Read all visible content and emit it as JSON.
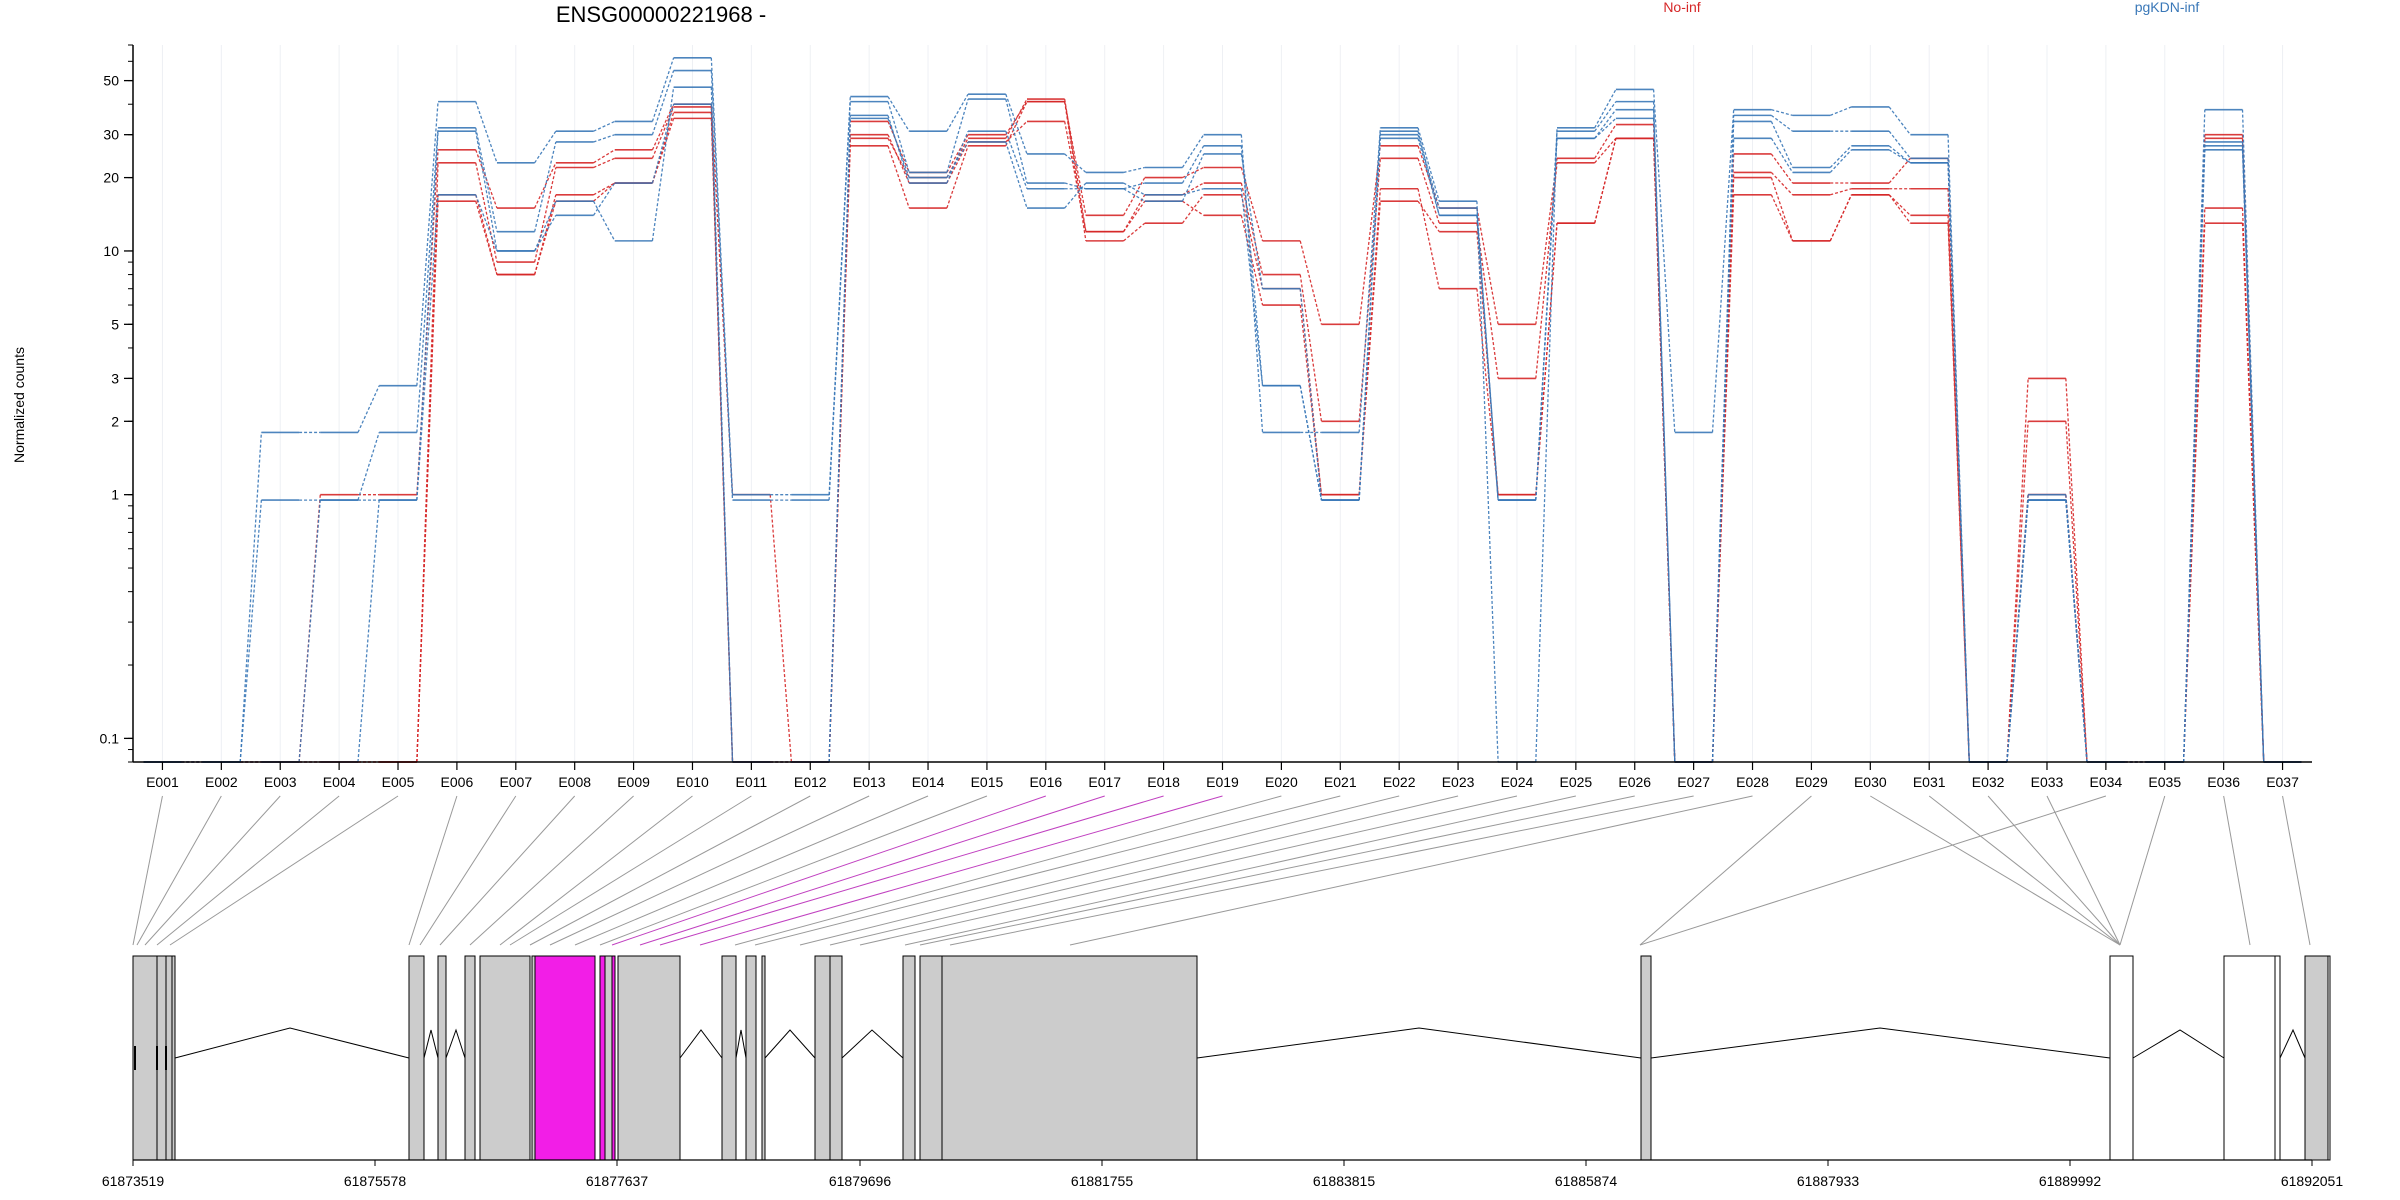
{
  "chart_data": {
    "type": "line",
    "title": "ENSG00000221968 -",
    "ylabel": "Normalized counts",
    "y_scale": "log",
    "ylim": [
      0.08,
      70
    ],
    "y_ticks": [
      0.1,
      1,
      2,
      3,
      5,
      10,
      20,
      30,
      50
    ],
    "y_tick_labels": [
      "0.1",
      "1",
      "2",
      "3",
      "5",
      "10",
      "20",
      "30",
      "50"
    ],
    "categories": [
      "E001",
      "E002",
      "E003",
      "E004",
      "E005",
      "E006",
      "E007",
      "E008",
      "E009",
      "E010",
      "E011",
      "E012",
      "E013",
      "E014",
      "E015",
      "E016",
      "E017",
      "E018",
      "E019",
      "E020",
      "E021",
      "E022",
      "E023",
      "E024",
      "E025",
      "E026",
      "E027",
      "E028",
      "E029",
      "E030",
      "E031",
      "E032",
      "E033",
      "E034",
      "E035",
      "E036",
      "E037"
    ],
    "legend": [
      {
        "label": "No-inf",
        "color": "#d62728"
      },
      {
        "label": "pgKDN-inf",
        "color": "#3a78b8"
      }
    ],
    "series": [
      {
        "group": "No-inf",
        "color": "#d62728",
        "values": [
          0.08,
          0.08,
          0.08,
          1,
          1,
          26,
          15,
          23,
          26,
          40,
          1,
          0.08,
          34,
          21,
          30,
          41,
          14,
          20,
          22,
          11,
          5,
          27,
          15,
          5,
          24,
          33,
          0.08,
          25,
          19,
          19,
          24,
          0.08,
          3,
          0.08,
          0.08,
          30,
          0.08
        ]
      },
      {
        "group": "No-inf",
        "color": "#d62728",
        "values": [
          0.08,
          0.08,
          0.08,
          0.08,
          0.08,
          23,
          9,
          22,
          24,
          39,
          0.08,
          0.08,
          30,
          19,
          28,
          34,
          12,
          17,
          19,
          8,
          2,
          24,
          13,
          3,
          23,
          29,
          0.08,
          21,
          17,
          18,
          18,
          0.08,
          2,
          0.08,
          0.08,
          29,
          0.08
        ]
      },
      {
        "group": "No-inf",
        "color": "#d62728",
        "values": [
          0.08,
          0.08,
          0.08,
          0.08,
          0.08,
          17,
          8,
          17,
          19,
          37,
          0.08,
          0.08,
          27,
          15,
          27,
          41,
          11,
          13,
          17,
          7,
          1,
          18,
          7,
          1,
          13,
          29,
          0.08,
          17,
          11,
          17,
          13,
          0.08,
          1,
          0.08,
          0.08,
          15,
          0.08
        ]
      },
      {
        "group": "No-inf",
        "color": "#d62728",
        "values": [
          0.08,
          0.08,
          0.08,
          0.08,
          0.08,
          16,
          8,
          16,
          19,
          35,
          0.08,
          0.08,
          29,
          20,
          29,
          42,
          12,
          16,
          14,
          6,
          1,
          16,
          12,
          1,
          13,
          29,
          0.08,
          20,
          11,
          17,
          14,
          0.08,
          1,
          0.08,
          0.08,
          13,
          0.08
        ]
      },
      {
        "group": "pgKDN-inf",
        "color": "#3a78b8",
        "values": [
          0.08,
          0.08,
          1.8,
          1.8,
          2.8,
          41,
          23,
          31,
          34,
          62,
          1,
          1,
          43,
          31,
          44,
          25,
          21,
          22,
          30,
          1.8,
          1.8,
          32,
          16,
          0.08,
          32,
          46,
          1.8,
          38,
          36,
          39,
          30,
          0.08,
          1,
          0.08,
          0.08,
          38,
          0.08
        ]
      },
      {
        "group": "pgKDN-inf",
        "color": "#3a78b8",
        "values": [
          0.08,
          0.08,
          0.95,
          0.95,
          1.8,
          32,
          12,
          28,
          30,
          55,
          0.95,
          0.95,
          41,
          21,
          42,
          19,
          18,
          19,
          27,
          2.8,
          0.95,
          31,
          14,
          0.95,
          31,
          41,
          0.08,
          36,
          31,
          31,
          24,
          0.08,
          0.95,
          0.08,
          0.08,
          28,
          0.08
        ]
      },
      {
        "group": "pgKDN-inf",
        "color": "#3a78b8",
        "values": [
          0.08,
          0.08,
          0.08,
          0.95,
          0.95,
          31,
          10,
          16,
          11,
          47,
          0.08,
          0.08,
          36,
          19,
          31,
          18,
          18,
          16,
          25,
          7,
          0.95,
          29,
          14,
          0.95,
          29,
          38,
          0.08,
          34,
          22,
          27,
          23,
          0.08,
          0.95,
          0.08,
          0.08,
          27,
          0.08
        ]
      },
      {
        "group": "pgKDN-inf",
        "color": "#3a78b8",
        "values": [
          0.08,
          0.08,
          0.08,
          0.08,
          0.95,
          17,
          10,
          14,
          19,
          40,
          0.08,
          0.08,
          35,
          20,
          28,
          15,
          19,
          17,
          18,
          2.8,
          0.95,
          30,
          15,
          0.95,
          29,
          35,
          0.08,
          29,
          21,
          26,
          23,
          0.08,
          0.95,
          0.08,
          0.08,
          26,
          0.08
        ]
      }
    ],
    "track": {
      "start_label": "61873519",
      "genomic_tick_labels": [
        "61873519",
        "61875578",
        "61877637",
        "61879696",
        "61881755",
        "61883815",
        "61885874",
        "61887933",
        "61889992",
        "61892051"
      ],
      "exons": [
        {
          "id": "E001",
          "fill": "gray"
        },
        {
          "id": "E002",
          "fill": "gray"
        },
        {
          "id": "E003",
          "fill": "gray"
        },
        {
          "id": "E004",
          "fill": "gray"
        },
        {
          "id": "E005",
          "fill": "gray"
        },
        {
          "id": "E006",
          "fill": "gray"
        },
        {
          "id": "E007",
          "fill": "gray"
        },
        {
          "id": "E008",
          "fill": "gray"
        },
        {
          "id": "E009",
          "fill": "gray"
        },
        {
          "id": "E010",
          "fill": "magenta"
        },
        {
          "id": "E011",
          "fill": "magenta"
        },
        {
          "id": "E012",
          "fill": "gray"
        },
        {
          "id": "E013",
          "fill": "gray"
        },
        {
          "id": "E014",
          "fill": "gray"
        },
        {
          "id": "E015",
          "fill": "gray"
        },
        {
          "id": "E016",
          "fill": "gray"
        },
        {
          "id": "E017",
          "fill": "gray"
        },
        {
          "id": "E018",
          "fill": "gray"
        },
        {
          "id": "E019",
          "fill": "gray"
        },
        {
          "id": "E020",
          "fill": "gray"
        },
        {
          "id": "E021",
          "fill": "gray"
        },
        {
          "id": "E022",
          "fill": "gray"
        },
        {
          "id": "E023",
          "fill": "white"
        },
        {
          "id": "E024",
          "fill": "white"
        },
        {
          "id": "E025",
          "fill": "white"
        },
        {
          "id": "E026",
          "fill": "gray"
        },
        {
          "id": "E027",
          "fill": "white"
        }
      ]
    }
  }
}
